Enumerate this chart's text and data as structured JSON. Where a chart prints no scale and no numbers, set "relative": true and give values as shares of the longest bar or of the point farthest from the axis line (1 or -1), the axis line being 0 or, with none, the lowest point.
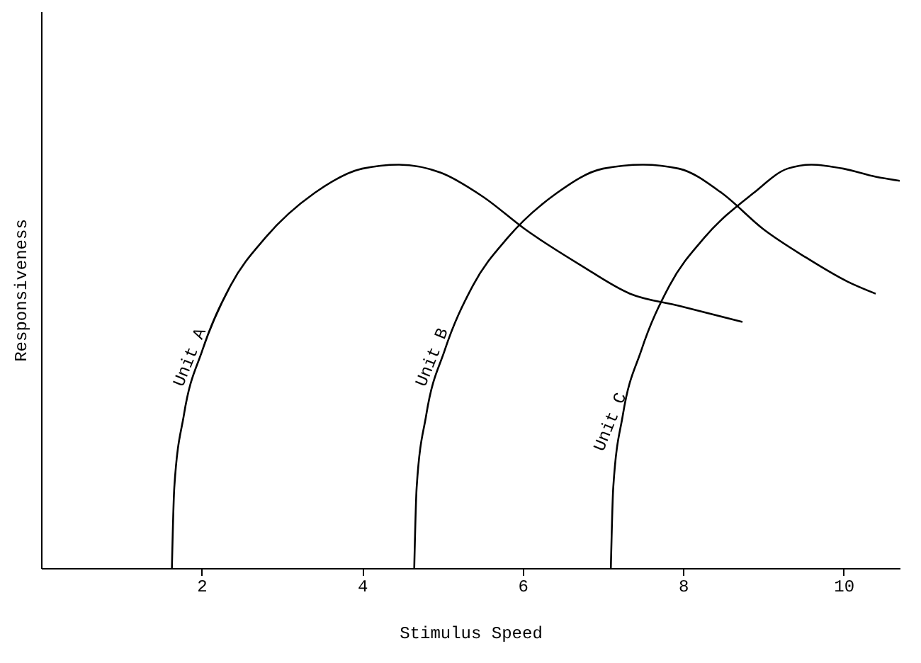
{
  "chart_data": {
    "type": "line",
    "relative": true,
    "xlabel": "Stimulus Speed",
    "ylabel": "Responsiveness",
    "xlim": [
      0,
      10.7
    ],
    "xticks": [
      2,
      4,
      6,
      8,
      10
    ],
    "grid": false,
    "legend": false,
    "marker": "none",
    "line_style": "solid",
    "series": [
      {
        "name": "Unit A",
        "color": "#000000",
        "x": [
          1.63,
          1.66,
          1.78,
          2.01,
          2.36,
          2.8,
          3.41,
          4.0,
          4.46,
          4.98,
          5.51,
          6.03,
          6.73,
          7.34,
          7.95,
          8.74
        ],
        "values": [
          0,
          0.2,
          0.38,
          0.54,
          0.7,
          0.82,
          0.93,
          0.99,
          1.0,
          0.98,
          0.92,
          0.84,
          0.75,
          0.68,
          0.65,
          0.61
        ]
      },
      {
        "name": "Unit B",
        "color": "#000000",
        "x": [
          4.65,
          4.68,
          4.8,
          5.03,
          5.38,
          5.82,
          6.43,
          7.0,
          7.5,
          7.95,
          8.48,
          9.0,
          9.53,
          10.05,
          10.4
        ],
        "values": [
          0,
          0.2,
          0.38,
          0.54,
          0.7,
          0.82,
          0.93,
          0.99,
          1.0,
          0.99,
          0.93,
          0.84,
          0.77,
          0.71,
          0.68
        ]
      },
      {
        "name": "Unit C",
        "color": "#000000",
        "x": [
          7.1,
          7.13,
          7.25,
          7.48,
          7.83,
          8.27,
          8.88,
          9.3,
          9.6,
          10.0,
          10.4,
          10.7
        ],
        "values": [
          0,
          0.2,
          0.38,
          0.54,
          0.7,
          0.82,
          0.93,
          0.99,
          1.0,
          0.99,
          0.97,
          0.96
        ]
      }
    ]
  }
}
